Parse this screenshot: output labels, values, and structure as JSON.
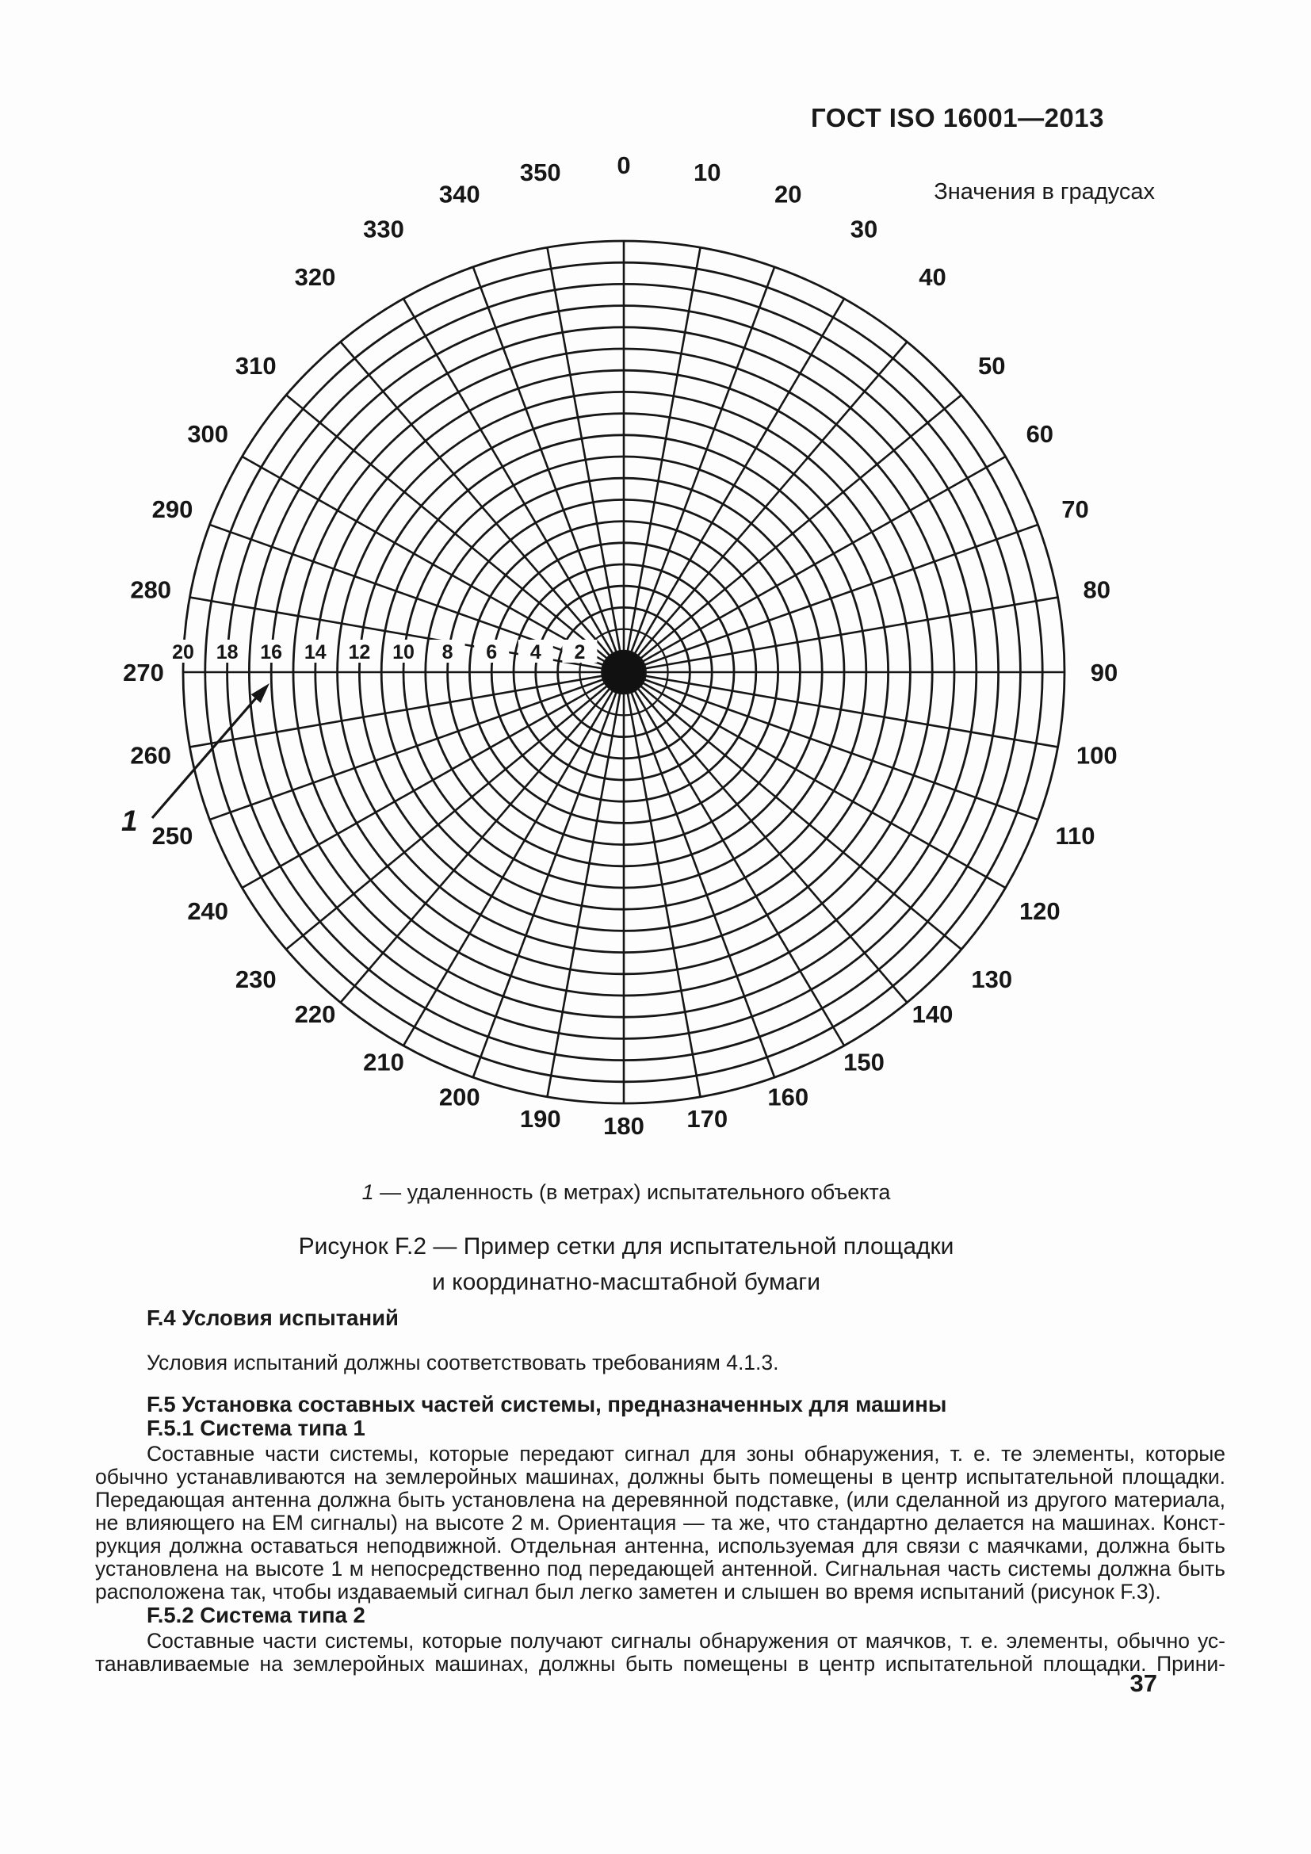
{
  "page": {
    "standard_code": "ГОСТ ISO 16001—2013",
    "units_note": "Значения в градусах",
    "page_number": "37"
  },
  "figure": {
    "callout_label": "1",
    "legend_num": "1",
    "legend_text": " — удаленность (в метрах) испытательного объекта",
    "caption_line1": "Рисунок F.2 — Пример сетки для испытательной площадки",
    "caption_line2": "и координатно-масштабной бумаги"
  },
  "chart_data": {
    "type": "polar-grid",
    "title": "Значения в градусах",
    "angle_step_deg": 10,
    "angle_labels": [
      "0",
      "10",
      "20",
      "30",
      "40",
      "50",
      "60",
      "70",
      "80",
      "90",
      "100",
      "110",
      "120",
      "130",
      "140",
      "150",
      "160",
      "170",
      "180",
      "190",
      "200",
      "210",
      "220",
      "230",
      "240",
      "250",
      "260",
      "270",
      "280",
      "290",
      "300",
      "310",
      "320",
      "330",
      "340",
      "350"
    ],
    "rings_count": 20,
    "ring_unit_m": 1,
    "radial_tick_labels": [
      "20",
      "18",
      "16",
      "14",
      "12",
      "10",
      "8",
      "6",
      "4",
      "2"
    ],
    "radial_axis_at_deg": 270,
    "grid": "on",
    "callout": {
      "label": "1",
      "meaning": "удаленность (в метрах) испытательного объекта"
    }
  },
  "sections": [
    {
      "type": "h2",
      "text": "F.4 Условия испытаний"
    },
    {
      "type": "p-indent",
      "text": "Условия испытаний должны соответствовать требованиям 4.1.3."
    },
    {
      "type": "h2",
      "text": "F.5 Установка составных частей системы, предназначенных для машины"
    },
    {
      "type": "h3",
      "text": "F.5.1 Система типа 1"
    },
    {
      "type": "para",
      "lines": [
        "Составные части системы, которые передают сигнал для зоны обнаружения, т. е. те элементы, которые",
        "обычно устанавливаются на землеройных машинах, должны быть помещены в центр испытательной площадки.",
        "Передающая антенна должна быть установлена на деревянной подставке, (или сделанной из другого материала,",
        "не влияющего на ЕМ сигналы) на высоте 2 м. Ориентация — та же, что стандартно делается на машинах. Конст-",
        "рукция должна оставаться неподвижной. Отдельная антенна, используемая для связи с маячками, должна быть",
        "установлена на высоте 1 м непосредственно под передающей антенной. Сигнальная часть системы должна быть",
        "расположена так, чтобы издаваемый сигнал был легко заметен и слышен во время испытаний (рисунок F.3)."
      ]
    },
    {
      "type": "h3",
      "text": "F.5.2 Система типа 2"
    },
    {
      "type": "para",
      "justify_last": true,
      "lines": [
        "Составные части системы, которые получают сигналы обнаружения от маячков, т. е. элементы, обычно ус-",
        "танавливаемые на землеройных машинах, должны быть помещены в центр испытательной площадки. Прини-"
      ]
    }
  ]
}
